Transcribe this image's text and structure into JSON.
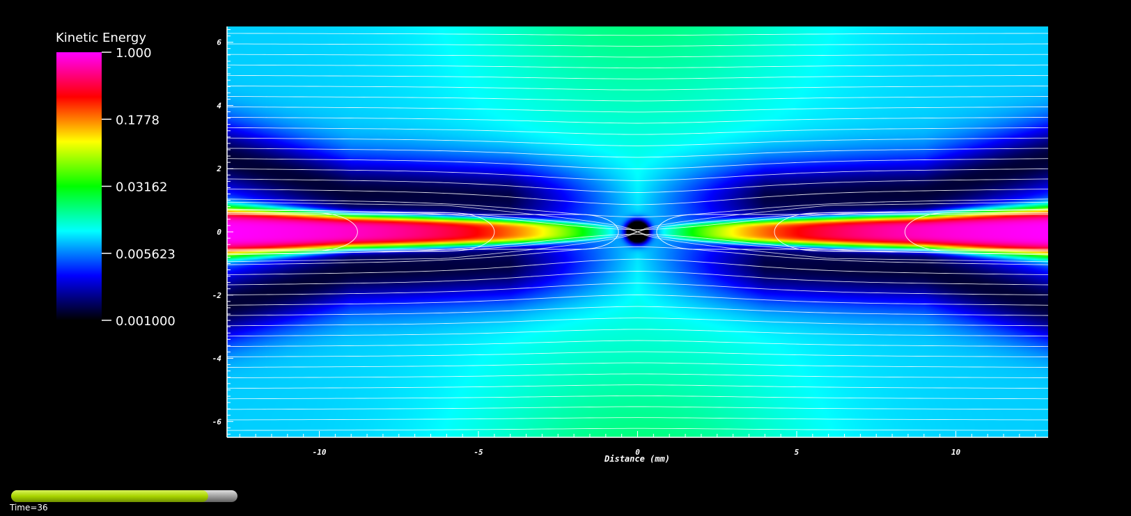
{
  "chart_data": {
    "type": "heatmap",
    "title": "",
    "xlabel": "Distance (mm)",
    "ylabel": "",
    "xlim": [
      -12.9,
      12.9
    ],
    "ylim": [
      -6.5,
      6.5
    ],
    "x_ticks": [
      -10,
      -5,
      0,
      5,
      10
    ],
    "y_ticks": [
      6,
      4,
      2,
      0,
      -2,
      -4,
      -6
    ],
    "grid": false,
    "colorbar": {
      "title": "Kinetic Energy",
      "scale": "log",
      "min": 0.001,
      "max": 1.0,
      "tick_values": [
        1.0,
        0.1778,
        0.03162,
        0.005623,
        0.001
      ],
      "tick_labels": [
        "1.000",
        "0.1778",
        "0.03162",
        "0.005623",
        "0.001000"
      ],
      "colors": [
        "#000000",
        "#0000ff",
        "#00ffff",
        "#00ff00",
        "#ffff00",
        "#ff0000",
        "#ff00ff"
      ]
    },
    "field_features": {
      "jet_axis_y": 0,
      "dark_spot_center": [
        0,
        0
      ],
      "jet_tip_distance": 0.6,
      "jet_edge_energy": 1.0,
      "background_energy": 0.008,
      "streamlines": "white"
    }
  },
  "annotation": {
    "time_label": "Time=36",
    "time_progress": 0.87
  }
}
